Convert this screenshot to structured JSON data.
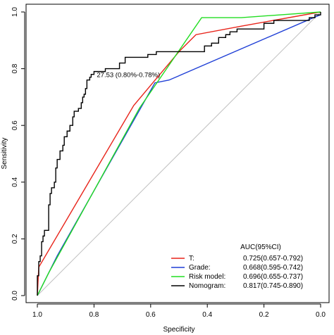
{
  "chart_data": {
    "type": "line",
    "xlabel": "Specificity",
    "ylabel": "Sensitivity",
    "x_reversed": true,
    "xlim": [
      1.0,
      0.0
    ],
    "ylim": [
      0.0,
      1.0
    ],
    "x_ticks": [
      "1.0",
      "0.8",
      "0.6",
      "0.4",
      "0.2",
      "0.0"
    ],
    "x_tick_values": [
      1.0,
      0.8,
      0.6,
      0.4,
      0.2,
      0.0
    ],
    "y_ticks": [
      "0.0",
      "0.2",
      "0.4",
      "0.6",
      "0.8",
      "1.0"
    ],
    "y_tick_values": [
      0.0,
      0.2,
      0.4,
      0.6,
      0.8,
      1.0
    ],
    "grid": false,
    "reference_line": {
      "from": [
        1.0,
        0.0
      ],
      "to": [
        0.0,
        1.0
      ],
      "color": "#bfbfbf"
    },
    "legend": {
      "title": "AUC(95%CI)",
      "placement": "bottom-right",
      "entries": [
        {
          "label": "T:",
          "value": "0.725(0.657-0.792)",
          "color": "#e8241a"
        },
        {
          "label": "Grade:",
          "value": "0.668(0.595-0.742)",
          "color": "#1f3fd6"
        },
        {
          "label": "Risk model:",
          "value": "0.696(0.655-0.737)",
          "color": "#22dd22"
        },
        {
          "label": "Nomogram:",
          "value": "0.817(0.745-0.890)",
          "color": "#000000"
        }
      ]
    },
    "annotation": {
      "text": "27.53 (0.80%-0.78%)",
      "point": [
        0.8,
        0.78
      ]
    },
    "series": [
      {
        "color": "#e8241a",
        "points": [
          [
            1.0,
            0.0
          ],
          [
            0.995,
            0.1
          ],
          [
            0.66,
            0.67
          ],
          [
            0.5,
            0.86
          ],
          [
            0.44,
            0.92
          ],
          [
            0.28,
            0.95
          ],
          [
            0.0,
            1.0
          ]
        ]
      },
      {
        "color": "#1f3fd6",
        "points": [
          [
            1.0,
            0.0
          ],
          [
            0.93,
            0.14
          ],
          [
            0.585,
            0.75
          ],
          [
            0.535,
            0.76
          ],
          [
            0.025,
            0.98
          ],
          [
            0.0,
            0.99
          ]
        ]
      },
      {
        "color": "#22dd22",
        "points": [
          [
            1.0,
            0.0
          ],
          [
            0.96,
            0.08
          ],
          [
            0.64,
            0.66
          ],
          [
            0.42,
            0.98
          ],
          [
            0.28,
            0.98
          ],
          [
            0.0,
            1.0
          ]
        ]
      },
      {
        "color": "#000000",
        "points": [
          [
            1.0,
            0.0
          ],
          [
            1.0,
            0.07
          ],
          [
            0.995,
            0.07
          ],
          [
            0.995,
            0.12
          ],
          [
            0.99,
            0.12
          ],
          [
            0.99,
            0.14
          ],
          [
            0.985,
            0.14
          ],
          [
            0.985,
            0.19
          ],
          [
            0.98,
            0.19
          ],
          [
            0.98,
            0.21
          ],
          [
            0.975,
            0.21
          ],
          [
            0.975,
            0.23
          ],
          [
            0.96,
            0.23
          ],
          [
            0.96,
            0.32
          ],
          [
            0.955,
            0.32
          ],
          [
            0.955,
            0.36
          ],
          [
            0.95,
            0.36
          ],
          [
            0.95,
            0.38
          ],
          [
            0.94,
            0.38
          ],
          [
            0.94,
            0.4
          ],
          [
            0.935,
            0.4
          ],
          [
            0.935,
            0.45
          ],
          [
            0.93,
            0.45
          ],
          [
            0.93,
            0.48
          ],
          [
            0.92,
            0.48
          ],
          [
            0.92,
            0.51
          ],
          [
            0.91,
            0.51
          ],
          [
            0.91,
            0.53
          ],
          [
            0.905,
            0.53
          ],
          [
            0.905,
            0.56
          ],
          [
            0.895,
            0.56
          ],
          [
            0.895,
            0.58
          ],
          [
            0.885,
            0.58
          ],
          [
            0.885,
            0.6
          ],
          [
            0.875,
            0.6
          ],
          [
            0.875,
            0.63
          ],
          [
            0.87,
            0.63
          ],
          [
            0.87,
            0.65
          ],
          [
            0.855,
            0.65
          ],
          [
            0.855,
            0.66
          ],
          [
            0.845,
            0.66
          ],
          [
            0.845,
            0.68
          ],
          [
            0.84,
            0.68
          ],
          [
            0.84,
            0.7
          ],
          [
            0.835,
            0.7
          ],
          [
            0.835,
            0.71
          ],
          [
            0.83,
            0.71
          ],
          [
            0.83,
            0.73
          ],
          [
            0.825,
            0.73
          ],
          [
            0.825,
            0.76
          ],
          [
            0.815,
            0.76
          ],
          [
            0.815,
            0.77
          ],
          [
            0.81,
            0.77
          ],
          [
            0.81,
            0.78
          ],
          [
            0.8,
            0.78
          ],
          [
            0.8,
            0.79
          ],
          [
            0.76,
            0.79
          ],
          [
            0.76,
            0.8
          ],
          [
            0.71,
            0.8
          ],
          [
            0.71,
            0.82
          ],
          [
            0.69,
            0.82
          ],
          [
            0.69,
            0.84
          ],
          [
            0.61,
            0.84
          ],
          [
            0.61,
            0.85
          ],
          [
            0.58,
            0.85
          ],
          [
            0.58,
            0.86
          ],
          [
            0.41,
            0.86
          ],
          [
            0.41,
            0.88
          ],
          [
            0.385,
            0.88
          ],
          [
            0.385,
            0.89
          ],
          [
            0.36,
            0.89
          ],
          [
            0.36,
            0.91
          ],
          [
            0.335,
            0.91
          ],
          [
            0.335,
            0.92
          ],
          [
            0.32,
            0.92
          ],
          [
            0.32,
            0.93
          ],
          [
            0.295,
            0.93
          ],
          [
            0.295,
            0.94
          ],
          [
            0.2,
            0.94
          ],
          [
            0.2,
            0.96
          ],
          [
            0.165,
            0.96
          ],
          [
            0.165,
            0.97
          ],
          [
            0.04,
            0.97
          ],
          [
            0.04,
            0.98
          ],
          [
            0.02,
            0.98
          ],
          [
            0.02,
            0.99
          ],
          [
            0.0,
            0.99
          ],
          [
            0.0,
            1.0
          ]
        ]
      }
    ]
  }
}
